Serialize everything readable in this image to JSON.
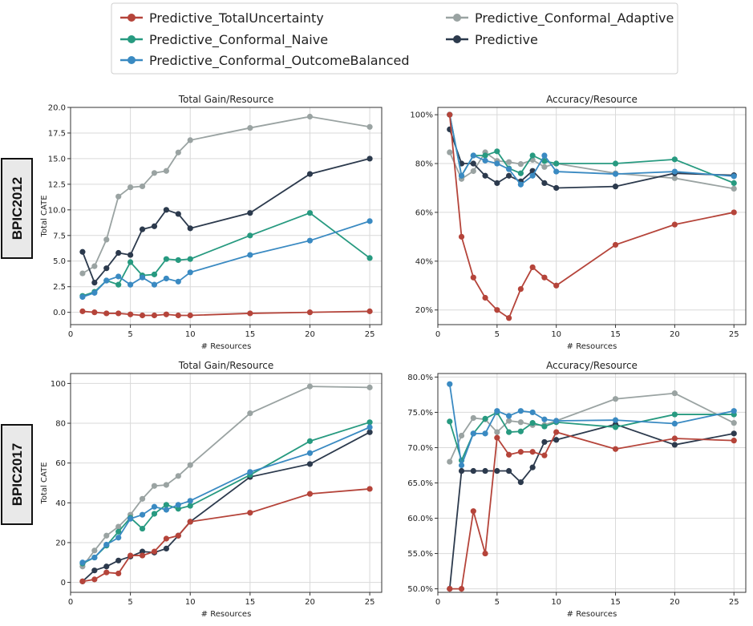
{
  "legend": [
    {
      "name": "Predictive_TotalUncertainty",
      "color": "#b5443a"
    },
    {
      "name": "Predictive_Conformal_Naive",
      "color": "#279a80"
    },
    {
      "name": "Predictive_Conformal_OutcomeBalanced",
      "color": "#3a8ac2"
    },
    {
      "name": "Predictive_Conformal_Adaptive",
      "color": "#9aa3a2"
    },
    {
      "name": "Predictive",
      "color": "#2c3a4d"
    }
  ],
  "row_labels": [
    "BPIC2012",
    "BPIC2017"
  ],
  "chart_data": [
    {
      "type": "line",
      "title": "Total Gain/Resource",
      "xlabel": "# Resources",
      "ylabel": "Total CATE",
      "xlim": [
        0,
        26
      ],
      "ylim": [
        -1.2,
        20
      ],
      "xticks": [
        0,
        5,
        10,
        15,
        20,
        25
      ],
      "yticks": [
        0.0,
        2.5,
        5.0,
        7.5,
        10.0,
        12.5,
        15.0,
        17.5,
        20.0
      ],
      "ytick_labels": [
        "0.0",
        "2.5",
        "5.0",
        "7.5",
        "10.0",
        "12.5",
        "15.0",
        "17.5",
        "20.0"
      ],
      "x": [
        1,
        2,
        3,
        4,
        5,
        6,
        7,
        8,
        9,
        10,
        15,
        20,
        25
      ],
      "series": [
        {
          "name": "Predictive_Conformal_Adaptive",
          "values": [
            3.8,
            4.5,
            7.1,
            11.3,
            12.2,
            12.3,
            13.6,
            13.8,
            15.6,
            16.8,
            18.0,
            19.1,
            18.1
          ]
        },
        {
          "name": "Predictive",
          "values": [
            5.9,
            2.9,
            4.3,
            5.8,
            5.6,
            8.1,
            8.4,
            10.0,
            9.6,
            8.2,
            9.7,
            13.5,
            15.0
          ]
        },
        {
          "name": "Predictive_Conformal_Naive",
          "values": [
            1.6,
            2.0,
            3.1,
            2.7,
            4.9,
            3.6,
            3.7,
            5.2,
            5.1,
            5.2,
            7.5,
            9.7,
            5.3
          ]
        },
        {
          "name": "Predictive_Conformal_OutcomeBalanced",
          "values": [
            1.5,
            1.9,
            3.1,
            3.5,
            2.7,
            3.4,
            2.7,
            3.3,
            3.0,
            3.9,
            5.6,
            7.0,
            8.9
          ]
        },
        {
          "name": "Predictive_TotalUncertainty",
          "values": [
            0.1,
            0.0,
            -0.1,
            -0.1,
            -0.2,
            -0.3,
            -0.3,
            -0.2,
            -0.3,
            -0.3,
            -0.1,
            0.0,
            0.1
          ]
        }
      ]
    },
    {
      "type": "line",
      "title": "Accuracy/Resource",
      "xlabel": "# Resources",
      "ylabel": "",
      "xlim": [
        0,
        26
      ],
      "ylim": [
        0.14,
        1.03
      ],
      "xticks": [
        0,
        5,
        10,
        15,
        20,
        25
      ],
      "yticks": [
        0.2,
        0.4,
        0.6,
        0.8,
        1.0
      ],
      "ytick_labels": [
        "20%",
        "40%",
        "60%",
        "80%",
        "100%"
      ],
      "x": [
        1,
        2,
        3,
        4,
        5,
        6,
        7,
        8,
        9,
        10,
        15,
        20,
        25
      ],
      "series": [
        {
          "name": "Predictive_Conformal_Adaptive",
          "values": [
            0.846,
            0.737,
            0.769,
            0.846,
            0.811,
            0.806,
            0.798,
            0.815,
            0.786,
            0.8,
            0.76,
            0.74,
            0.697
          ]
        },
        {
          "name": "Predictive",
          "values": [
            0.94,
            0.8,
            0.8,
            0.75,
            0.72,
            0.75,
            0.727,
            0.77,
            0.72,
            0.7,
            0.706,
            0.76,
            0.752
          ]
        },
        {
          "name": "Predictive_Conformal_Naive",
          "values": [
            1.0,
            0.75,
            0.833,
            0.833,
            0.85,
            0.78,
            0.76,
            0.833,
            0.81,
            0.8,
            0.8,
            0.817,
            0.72
          ]
        },
        {
          "name": "Predictive_Conformal_OutcomeBalanced",
          "values": [
            1.0,
            0.75,
            0.833,
            0.812,
            0.8,
            0.777,
            0.714,
            0.75,
            0.833,
            0.767,
            0.757,
            0.767,
            0.748
          ]
        },
        {
          "name": "Predictive_TotalUncertainty",
          "values": [
            1.0,
            0.5,
            0.333,
            0.25,
            0.2,
            0.167,
            0.286,
            0.375,
            0.333,
            0.3,
            0.467,
            0.55,
            0.6
          ]
        }
      ]
    },
    {
      "type": "line",
      "title": "Total Gain/Resource",
      "xlabel": "# Resources",
      "ylabel": "Total CATE",
      "xlim": [
        0,
        26
      ],
      "ylim": [
        -5,
        105
      ],
      "xticks": [
        0,
        5,
        10,
        15,
        20,
        25
      ],
      "yticks": [
        0,
        20,
        40,
        60,
        80,
        100
      ],
      "ytick_labels": [
        "0",
        "20",
        "40",
        "60",
        "80",
        "100"
      ],
      "x": [
        1,
        2,
        3,
        4,
        5,
        6,
        7,
        8,
        9,
        10,
        15,
        20,
        25
      ],
      "series": [
        {
          "name": "Predictive_Conformal_Adaptive",
          "values": [
            8,
            16,
            23.5,
            28,
            34,
            42,
            48.5,
            49,
            53.5,
            59,
            85,
            98.5,
            98
          ]
        },
        {
          "name": "Predictive",
          "values": [
            0.5,
            6,
            8,
            11,
            13,
            15.5,
            15,
            17,
            23.5,
            30.5,
            53,
            59.5,
            75.5
          ]
        },
        {
          "name": "Predictive_Conformal_Naive",
          "values": [
            9.5,
            12.5,
            18.5,
            25.5,
            32.5,
            27,
            34.5,
            39,
            37,
            38.5,
            54,
            71,
            80.5
          ]
        },
        {
          "name": "Predictive_Conformal_OutcomeBalanced",
          "values": [
            10,
            12.5,
            19,
            22.5,
            32,
            34,
            38,
            36.5,
            39,
            41,
            55.5,
            65,
            78
          ]
        },
        {
          "name": "Predictive_TotalUncertainty",
          "values": [
            0.5,
            1.5,
            5,
            4.5,
            13.5,
            13.5,
            15.5,
            22,
            23.5,
            30.5,
            35,
            44.5,
            47
          ]
        }
      ]
    },
    {
      "type": "line",
      "title": "Accuracy/Resource",
      "xlabel": "# Resources",
      "ylabel": "",
      "xlim": [
        0,
        26
      ],
      "ylim": [
        0.495,
        0.805
      ],
      "xticks": [
        0,
        5,
        10,
        15,
        20,
        25
      ],
      "yticks": [
        0.5,
        0.55,
        0.6,
        0.65,
        0.7,
        0.75,
        0.8
      ],
      "ytick_labels": [
        "50.0%",
        "55.0%",
        "60.0%",
        "65.0%",
        "70.0%",
        "75.0%",
        "80.0%"
      ],
      "x": [
        1,
        2,
        3,
        4,
        5,
        6,
        7,
        8,
        9,
        10,
        15,
        20,
        25
      ],
      "series": [
        {
          "name": "Predictive_Conformal_Adaptive",
          "values": [
            0.68,
            0.717,
            0.742,
            0.74,
            0.722,
            0.738,
            0.736,
            0.732,
            0.732,
            0.738,
            0.769,
            0.777,
            0.735
          ]
        },
        {
          "name": "Predictive",
          "values": [
            0.5,
            0.667,
            0.667,
            0.667,
            0.667,
            0.667,
            0.651,
            0.672,
            0.708,
            0.711,
            0.733,
            0.704,
            0.72
          ]
        },
        {
          "name": "Predictive_Conformal_Naive",
          "values": [
            0.737,
            0.682,
            0.72,
            0.741,
            0.75,
            0.722,
            0.723,
            0.735,
            0.73,
            0.736,
            0.729,
            0.747,
            0.747
          ]
        },
        {
          "name": "Predictive_Conformal_OutcomeBalanced",
          "values": [
            0.79,
            0.675,
            0.72,
            0.72,
            0.752,
            0.745,
            0.752,
            0.75,
            0.74,
            0.738,
            0.739,
            0.734,
            0.752
          ]
        },
        {
          "name": "Predictive_TotalUncertainty",
          "values": [
            0.5,
            0.5,
            0.61,
            0.55,
            0.714,
            0.69,
            0.694,
            0.694,
            0.689,
            0.722,
            0.698,
            0.713,
            0.71
          ]
        }
      ]
    }
  ]
}
